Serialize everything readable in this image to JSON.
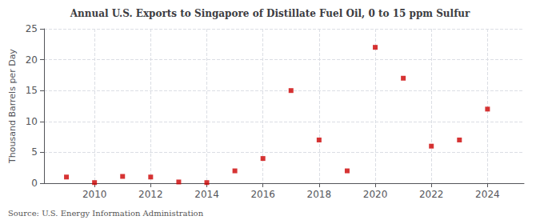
{
  "chart_data": {
    "type": "scatter",
    "title": "Annual U.S. Exports to Singapore of Distillate Fuel Oil, 0 to 15 ppm Sulfur",
    "ylabel": "Thousand Barrels per Day",
    "annotations": [
      "Source: U.S. Energy Information Administration"
    ],
    "x": [
      2009,
      2010,
      2011,
      2012,
      2013,
      2014,
      2015,
      2016,
      2017,
      2018,
      2019,
      2020,
      2021,
      2022,
      2023,
      2024
    ],
    "values": [
      1.0,
      0.1,
      1.1,
      1.0,
      0.2,
      0.1,
      2.0,
      4.0,
      15.0,
      7.0,
      2.0,
      22.0,
      17.0,
      6.0,
      7.0,
      12.0
    ],
    "color": "#cc0000",
    "marker": "square",
    "xlim": [
      2008.2,
      2025.3
    ],
    "xticks": [
      2010,
      2012,
      2014,
      2016,
      2018,
      2020,
      2022,
      2024
    ],
    "ylim": [
      0,
      25
    ],
    "yticks": [
      0,
      5,
      10,
      15,
      20,
      25
    ],
    "grid": true
  }
}
